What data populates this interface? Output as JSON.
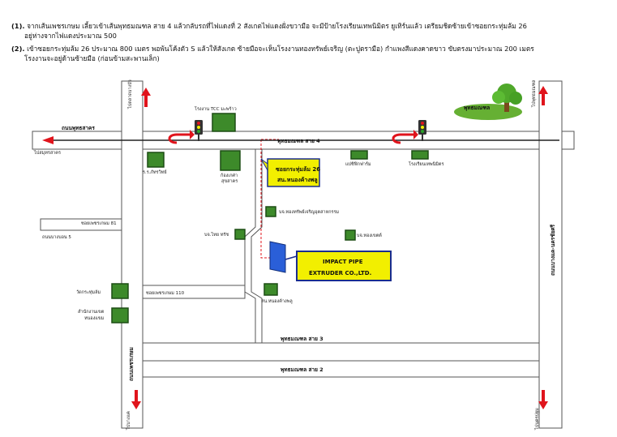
{
  "directions": [
    {
      "num": "(1).",
      "line1": "จากเส้นเพชรเกษม เลี้ยวเข้าเส้นพุทธมณฑล สาย 4 แล้วกลับรถที่ไฟแดงที่ 2 สังเกตไฟแดงฝั่งขวามือ จะมีป้ายโรงเรียนเทพนิมิตร ยูเทิร์นแล้ว เตรียมชิดซ้ายเข้าซอยกระทุ่มล้ม 26",
      "line2": "อยู่ห่างจากไฟแดงประมาณ 500"
    },
    {
      "num": "(2).",
      "line1": "เข้าซอยกระทุ่มล้ม 26 ประมาณ 800 เมตร พอพ้นโค้งตัว S แล้วให้สังเกต ซ้ายมือจะเห็นโรงงานทองทรัพย์เจริญ (ตะปูตรามือ) กำแพงสีแดงคาดขาว ขับตรงมาประมาณ 200 เมตร",
      "line2": "โรงงานจะอยู่ด้านซ้ายมือ (ก่อนข้ามสะพานเล็ก)"
    }
  ],
  "map": {
    "roads": {
      "top_road": "ถนนพุทธสาคร",
      "phutthamonthon4": "พุทธมณฑล สาย 4",
      "phutthamonthon3": "พุทธมณฑล สาย 3",
      "phutthamonthon2": "พุทธมณฑล สาย 2",
      "phetkasem": "ถนนเพชรเกษม",
      "right_road": "ถนนบางแค-นครชัยศรี",
      "soi_61": "ซอยเพชรเกษม 81",
      "soi_5": "ถนนบางบอน 5",
      "soi_110": "ซอยเพชรเกษม 110"
    },
    "arrows": {
      "top_left": "ไปตลาดบางบัว",
      "top_right": "ไปพุทธมณฑล",
      "left": "ไปสมุทรสาคร",
      "bottom_left": "ไปบางแค",
      "bottom_right": "ไปนครปฐม"
    },
    "places": {
      "tcc": "โรงงาน TCC มะพร้าว",
      "park_name": "พุทธมณฑล",
      "school_a": "ร.ร.ภัทรวิทย์",
      "hospital": "ก้องเกศา",
      "hospital2": "สุขสาคร",
      "sign_soi": "โรงเรียนเทพนิมิตร",
      "tholsri": "แปซิฟิกฟาร์ม",
      "thongsap": "บจ.ทองทรัพย์เจริญอุตสาหกรรม",
      "bj_a": "บจ.ไทย ทรัช",
      "bj_b": "บจ.ทองเขตต์",
      "wat": "วัดกระทุ่มล้ม",
      "office": "สำนักงานเขต",
      "office2": "หนองแขม",
      "phat": "สน.หนองค้างพลู"
    },
    "callout_soi": {
      "line1": "ซอยกระทุ่มล้ม 26",
      "line2": "สน.หนองค้างพลู"
    },
    "callout_impact": {
      "line1": "IMPACT PIPE",
      "line2": "EXTRUDER CO.,LTD."
    },
    "colors": {
      "callout_fill": "#f2ef00",
      "callout_border": "#1a2d8f",
      "factory": "#2a5fd8",
      "route": "#e0141c",
      "building": "#3d8a2a"
    }
  }
}
